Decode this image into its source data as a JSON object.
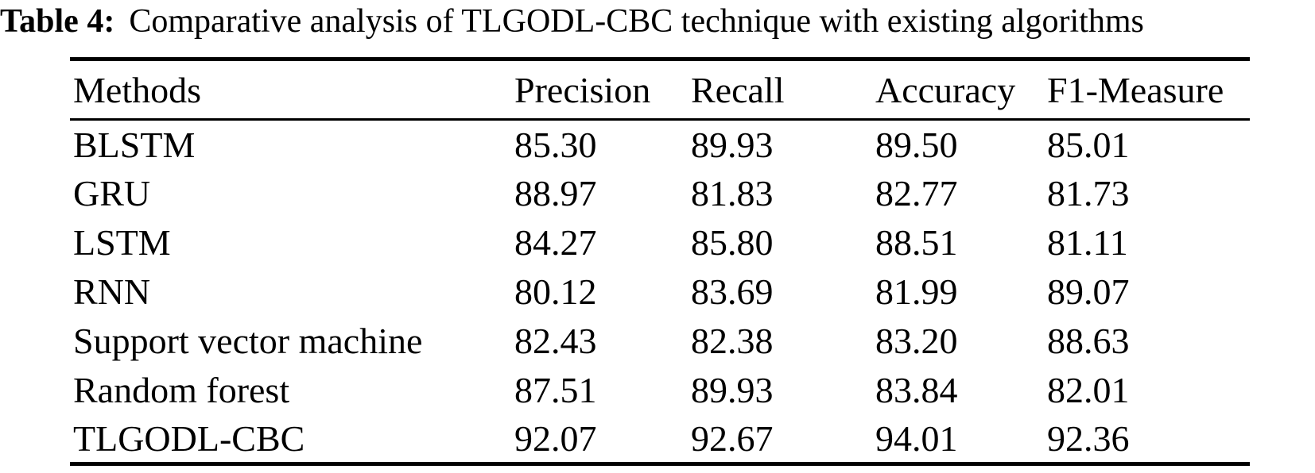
{
  "page": {
    "background_color": "#ffffff",
    "text_color": "#000000"
  },
  "caption": {
    "label": "Table 4:",
    "text": "Comparative analysis of TLGODL-CBC technique with existing algorithms"
  },
  "table": {
    "columns": [
      "Methods",
      "Precision",
      "Recall",
      "Accuracy",
      "F1-Measure"
    ],
    "rows": [
      {
        "method": "BLSTM",
        "precision": "85.30",
        "recall": "89.93",
        "accuracy": "89.50",
        "f1_measure": "85.01"
      },
      {
        "method": "GRU",
        "precision": "88.97",
        "recall": "81.83",
        "accuracy": "82.77",
        "f1_measure": "81.73"
      },
      {
        "method": "LSTM",
        "precision": "84.27",
        "recall": "85.80",
        "accuracy": "88.51",
        "f1_measure": "81.11"
      },
      {
        "method": "RNN",
        "precision": "80.12",
        "recall": "83.69",
        "accuracy": "81.99",
        "f1_measure": "89.07"
      },
      {
        "method": "Support vector machine",
        "precision": "82.43",
        "recall": "82.38",
        "accuracy": "83.20",
        "f1_measure": "88.63"
      },
      {
        "method": "Random forest",
        "precision": "87.51",
        "recall": "89.93",
        "accuracy": "83.84",
        "f1_measure": "82.01"
      },
      {
        "method": "TLGODL-CBC",
        "precision": "92.07",
        "recall": "92.67",
        "accuracy": "94.01",
        "f1_measure": "92.36"
      }
    ]
  },
  "chart_data": {
    "type": "table",
    "title": "Table 4: Comparative analysis of TLGODL-CBC technique with existing algorithms",
    "categories": [
      "BLSTM",
      "GRU",
      "LSTM",
      "RNN",
      "Support vector machine",
      "Random forest",
      "TLGODL-CBC"
    ],
    "series": [
      {
        "name": "Precision",
        "values": [
          85.3,
          88.97,
          84.27,
          80.12,
          82.43,
          87.51,
          92.07
        ]
      },
      {
        "name": "Recall",
        "values": [
          89.93,
          81.83,
          85.8,
          83.69,
          82.38,
          89.93,
          92.67
        ]
      },
      {
        "name": "Accuracy",
        "values": [
          89.5,
          82.77,
          88.51,
          81.99,
          83.2,
          83.84,
          94.01
        ]
      },
      {
        "name": "F1-Measure",
        "values": [
          85.01,
          81.73,
          81.11,
          89.07,
          88.63,
          82.01,
          92.36
        ]
      }
    ]
  }
}
